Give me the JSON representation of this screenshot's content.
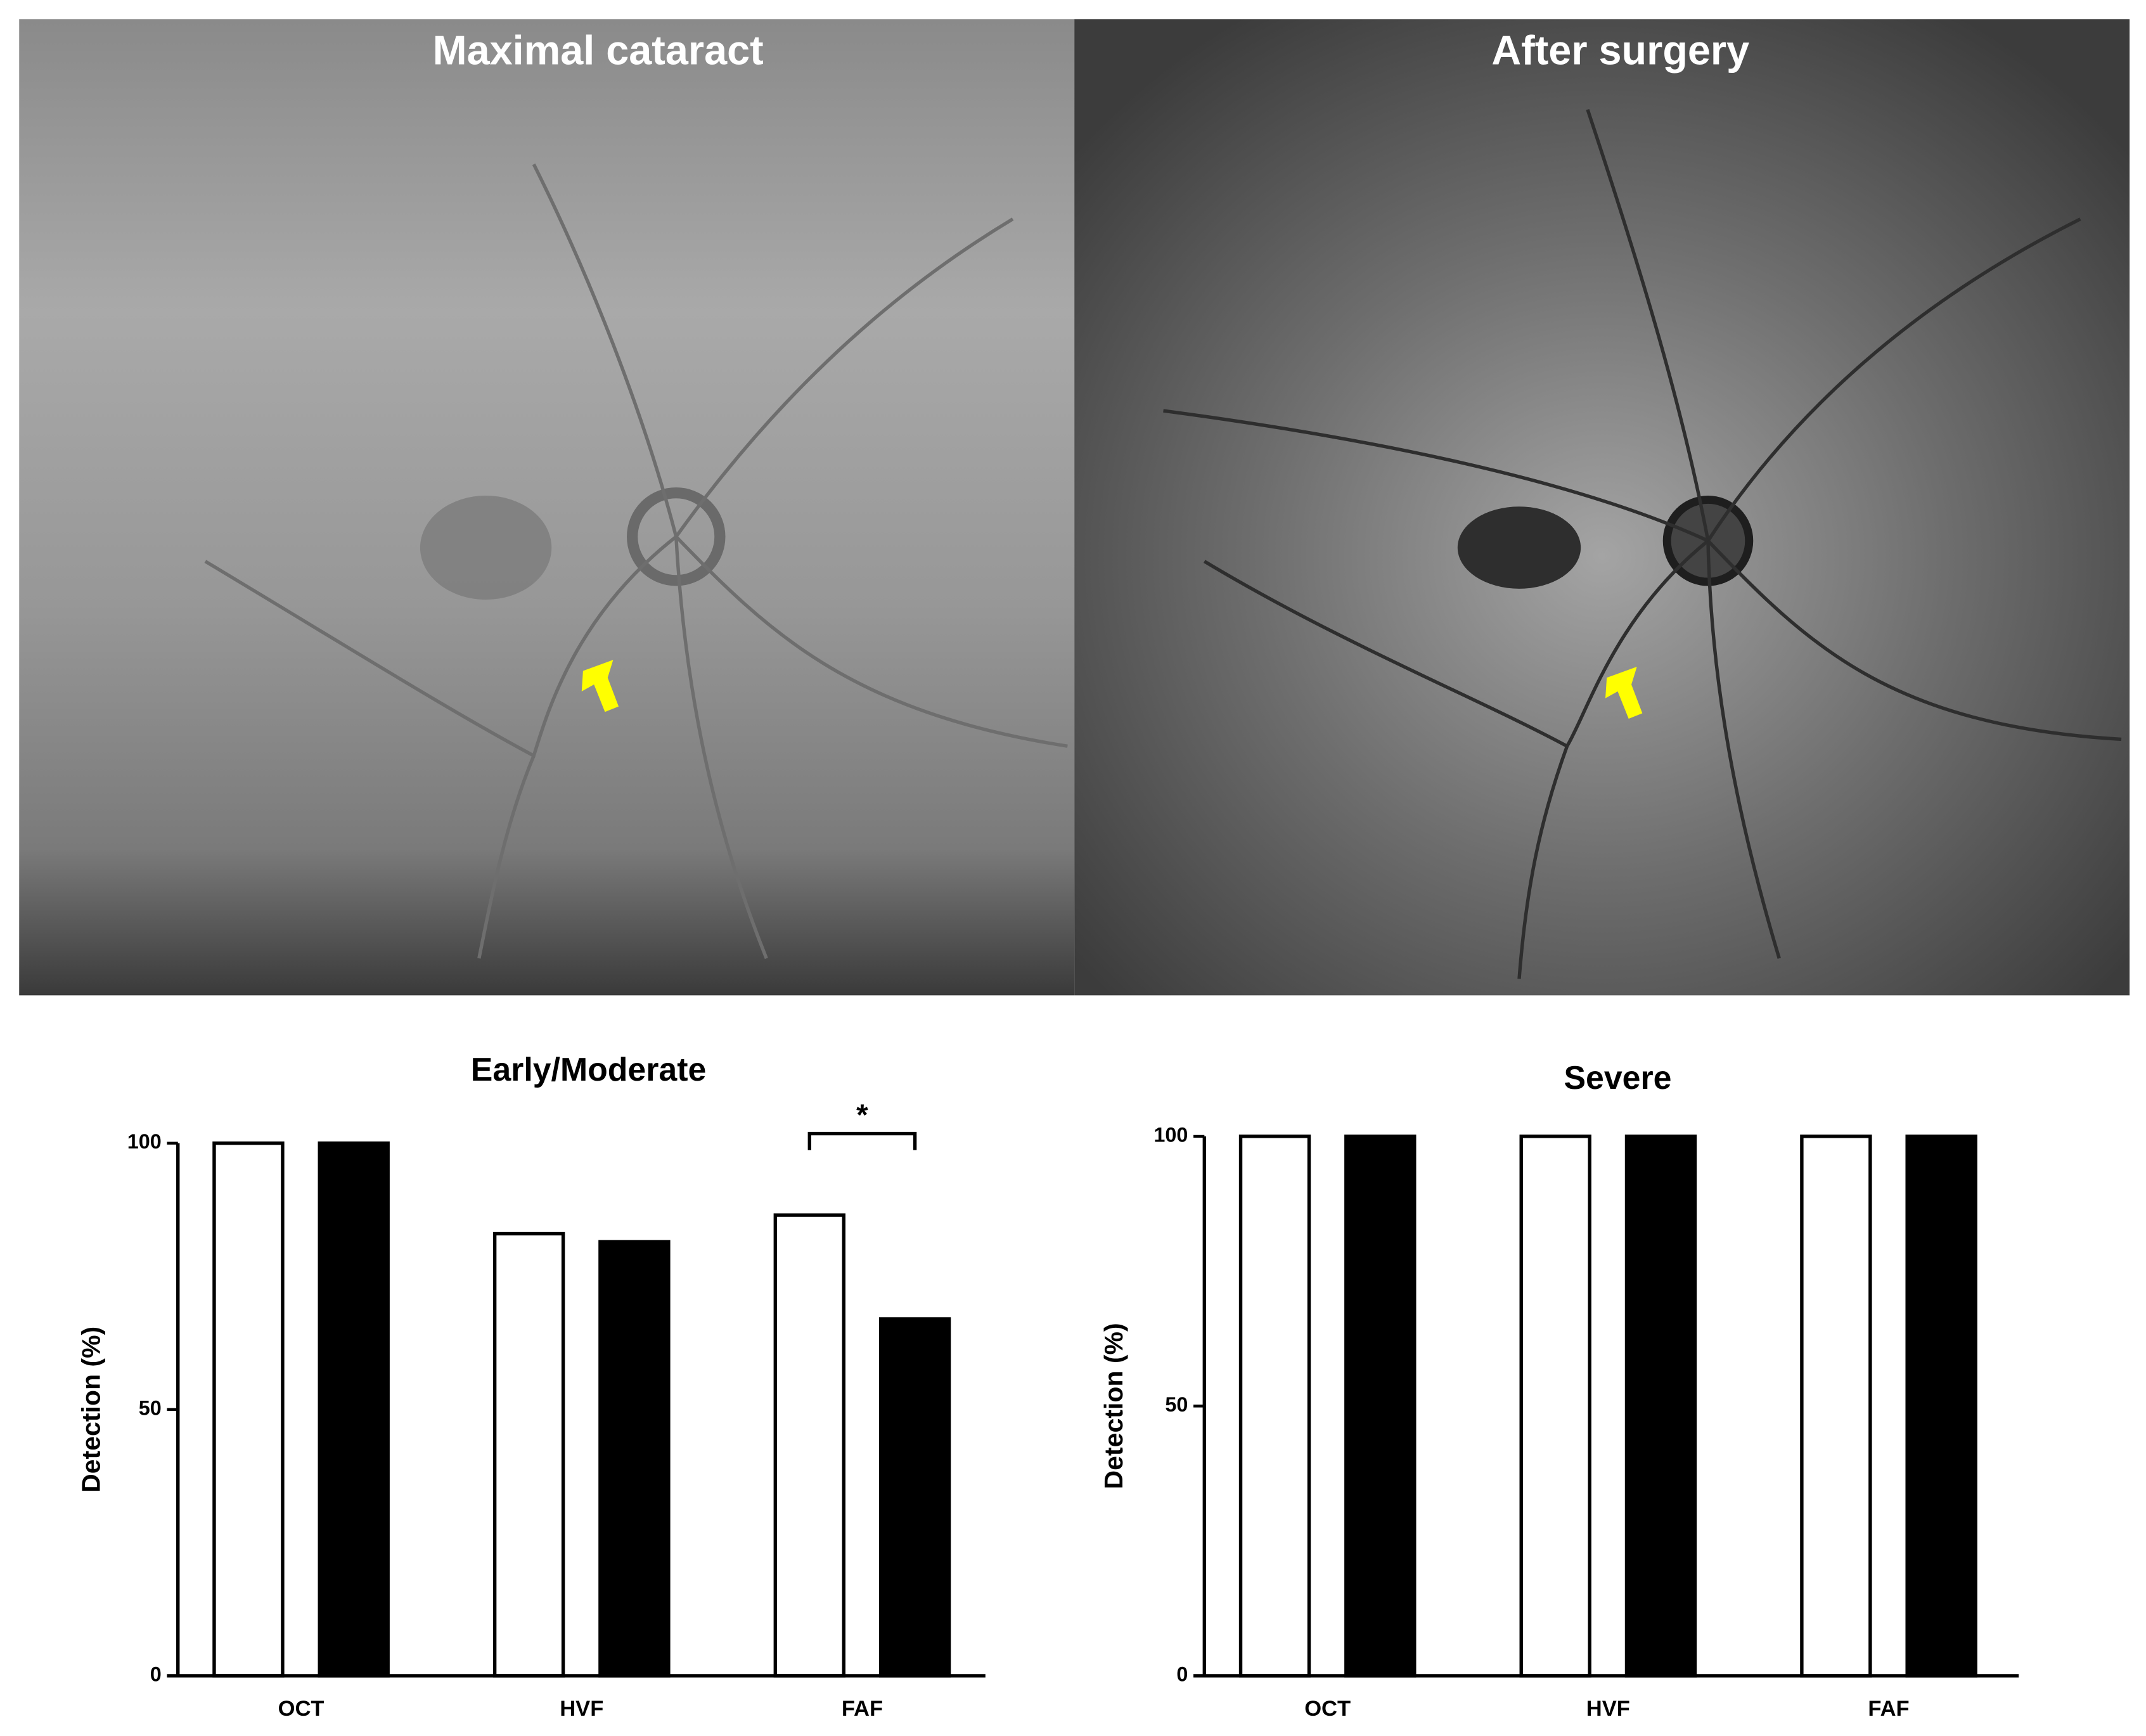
{
  "panels": [
    {
      "label": "Maximal cataract"
    },
    {
      "label": "After surgery"
    }
  ],
  "chart_data": [
    {
      "type": "bar",
      "title": "Early/Moderate",
      "y_label": "Detection (%)",
      "categories": [
        "OCT",
        "HVF",
        "FAF"
      ],
      "series": [
        {
          "color": "#ffffff",
          "values": [
            100,
            83,
            86.5
          ]
        },
        {
          "color": "#000000",
          "values": [
            100,
            81.5,
            67
          ]
        }
      ],
      "ylim": [
        0,
        100
      ],
      "yticks": [
        0,
        50,
        100
      ],
      "annotations": [
        {
          "text": "*",
          "category": "FAF"
        }
      ]
    },
    {
      "type": "bar",
      "title": "Severe",
      "y_label": "Detection (%)",
      "categories": [
        "OCT",
        "HVF",
        "FAF"
      ],
      "series": [
        {
          "color": "#ffffff",
          "values": [
            100,
            100,
            100
          ]
        },
        {
          "color": "#000000",
          "values": [
            100,
            100,
            100
          ]
        }
      ],
      "ylim": [
        0,
        100
      ],
      "yticks": [
        0,
        50,
        100
      ]
    }
  ]
}
